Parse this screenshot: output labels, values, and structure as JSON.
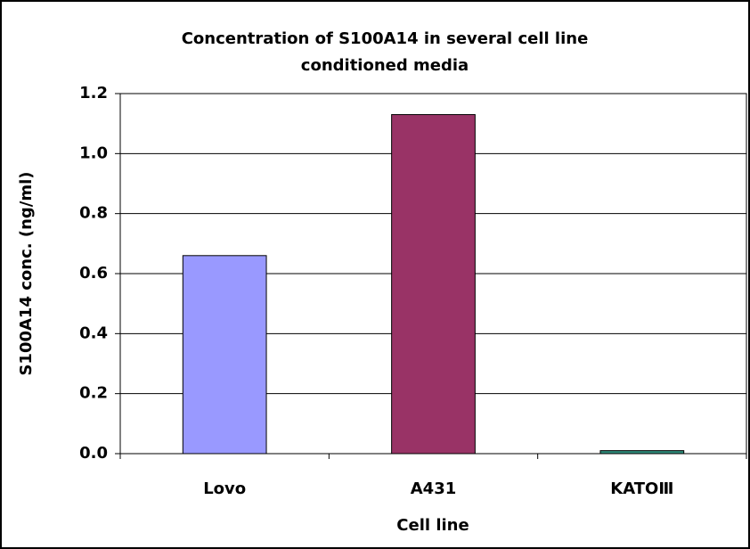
{
  "chart_data": {
    "type": "bar",
    "title": [
      "Concentration of S100A14 in several cell line",
      "conditioned media"
    ],
    "x_label": "Cell line",
    "y_label": "S100A14 conc. (ng/ml)",
    "categories": [
      "Lovo",
      "A431",
      "KATOⅢ"
    ],
    "values": [
      0.66,
      1.13,
      0.01
    ],
    "colors": [
      "#9999ff",
      "#993366",
      "#2e8b7a"
    ],
    "ylim": [
      0,
      1.2
    ],
    "yticks": [
      {
        "value": 0,
        "label": "0.0"
      },
      0.2,
      0.4,
      0.6,
      0.8,
      {
        "value": 1,
        "label": "1.0"
      },
      1.2
    ],
    "grid": true
  }
}
